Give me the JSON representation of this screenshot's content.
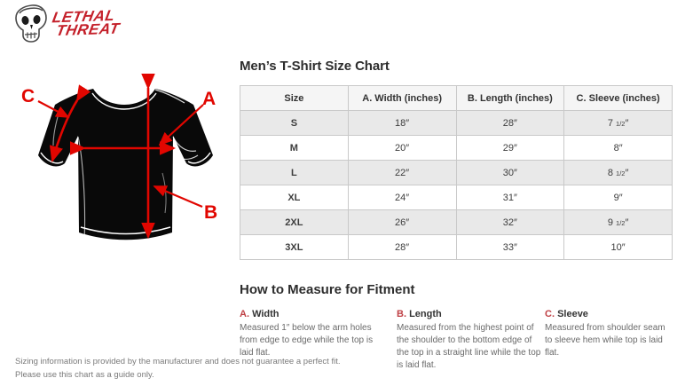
{
  "logo": {
    "line1": "Lethal",
    "line2": "Threat"
  },
  "colors": {
    "brand_red": "#c4202a",
    "arrow_red": "#e10600",
    "measure_label_red": "#bf4045",
    "table_border": "#c9c9c9",
    "row_alt_gray": "#e9e9e9",
    "header_gray": "#f5f5f5"
  },
  "diagram": {
    "labels": [
      "A",
      "B",
      "C"
    ]
  },
  "size_chart": {
    "title": "Men’s T-Shirt Size Chart",
    "columns": [
      "Size",
      "A. Width (inches)",
      "B. Length (inches)",
      "C. Sleeve (inches)"
    ],
    "rows": [
      [
        "S",
        "18″",
        "28″",
        "7 1/2″"
      ],
      [
        "M",
        "20″",
        "29″",
        "8″"
      ],
      [
        "L",
        "22″",
        "30″",
        "8 1/2″"
      ],
      [
        "XL",
        "24″",
        "31″",
        "9″"
      ],
      [
        "2XL",
        "26″",
        "32″",
        "9 1/2″"
      ],
      [
        "3XL",
        "28″",
        "33″",
        "10″"
      ]
    ]
  },
  "how_to_measure": {
    "title": "How to Measure for Fitment",
    "items": [
      {
        "letter": "A.",
        "name": "Width",
        "description": "Measured 1″ below the arm holes from edge to edge while the top is laid flat."
      },
      {
        "letter": "B.",
        "name": "Length",
        "description": "Measured from the highest point of the shoulder to the bottom edge of the top in a straight line while the top is laid flat."
      },
      {
        "letter": "C.",
        "name": "Sleeve",
        "description": "Measured from shoulder seam to sleeve hem while top is laid flat."
      }
    ]
  },
  "footer": {
    "line1": "Sizing information is provided by the manufacturer and does not guarantee a perfect fit.",
    "line2": "Please use this chart as a guide only."
  }
}
